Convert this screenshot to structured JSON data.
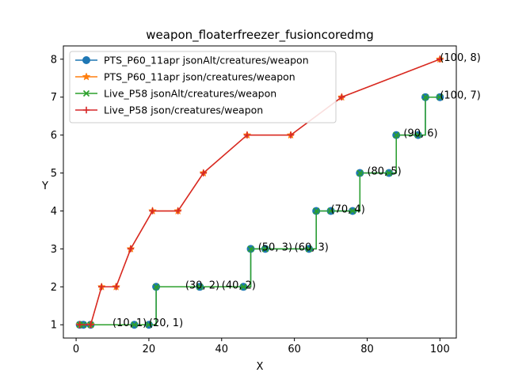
{
  "chart_data": {
    "type": "line",
    "title": "weapon_floaterfreezer_fusioncoredmg",
    "xlabel": "X",
    "ylabel": "Y",
    "xlim": [
      -3.5,
      104.5
    ],
    "ylim": [
      0.65,
      8.35
    ],
    "xticks": [
      0,
      20,
      40,
      60,
      80,
      100
    ],
    "yticks": [
      1,
      2,
      3,
      4,
      5,
      6,
      7,
      8
    ],
    "legend_position": "upper-left",
    "grid": false,
    "series": [
      {
        "name": "PTS_P60_11apr jsonAlt/creatures/weapon",
        "color": "#1f77b4",
        "marker": "circle",
        "step": true,
        "x": [
          1,
          2,
          4,
          16,
          20,
          22,
          34,
          46,
          48,
          52,
          64,
          66,
          70,
          76,
          78,
          86,
          88,
          94,
          96,
          100
        ],
        "y": [
          1,
          1,
          1,
          1,
          1,
          2,
          2,
          2,
          3,
          3,
          3,
          4,
          4,
          4,
          5,
          5,
          6,
          6,
          7,
          7
        ]
      },
      {
        "name": "PTS_P60_11apr json/creatures/weapon",
        "color": "#ff7f0e",
        "marker": "star",
        "step": false,
        "x": [
          1,
          4,
          7,
          11,
          15,
          21,
          28,
          35,
          47,
          59,
          73,
          100
        ],
        "y": [
          1,
          1,
          2,
          2,
          3,
          4,
          4,
          5,
          6,
          6,
          7,
          8
        ]
      },
      {
        "name": "Live_P58 jsonAlt/creatures/weapon",
        "color": "#2ca02c",
        "marker": "x",
        "step": true,
        "x": [
          1,
          2,
          4,
          16,
          20,
          22,
          34,
          46,
          48,
          52,
          64,
          66,
          70,
          76,
          78,
          86,
          88,
          94,
          96,
          100
        ],
        "y": [
          1,
          1,
          1,
          1,
          1,
          2,
          2,
          2,
          3,
          3,
          3,
          4,
          4,
          4,
          5,
          5,
          6,
          6,
          7,
          7
        ]
      },
      {
        "name": "Live_P58 json/creatures/weapon",
        "color": "#d62728",
        "marker": "plus",
        "step": false,
        "x": [
          1,
          4,
          7,
          11,
          15,
          21,
          28,
          35,
          47,
          59,
          73,
          100
        ],
        "y": [
          1,
          1,
          2,
          2,
          3,
          4,
          4,
          5,
          6,
          6,
          7,
          8
        ]
      }
    ],
    "annotations": [
      {
        "text": "(10, 1)",
        "x": 10,
        "y": 1
      },
      {
        "text": "(20, 1)",
        "x": 20,
        "y": 1
      },
      {
        "text": "(30, 2)",
        "x": 30,
        "y": 2
      },
      {
        "text": "(40, 2)",
        "x": 40,
        "y": 2
      },
      {
        "text": "(50, 3)",
        "x": 50,
        "y": 3
      },
      {
        "text": "(60, 3)",
        "x": 60,
        "y": 3
      },
      {
        "text": "(70, 4)",
        "x": 70,
        "y": 4
      },
      {
        "text": "(80, 5)",
        "x": 80,
        "y": 5
      },
      {
        "text": "(90, 6)",
        "x": 90,
        "y": 6
      },
      {
        "text": "(100, 7)",
        "x": 100,
        "y": 7
      },
      {
        "text": "(100, 8)",
        "x": 100,
        "y": 8
      }
    ]
  }
}
